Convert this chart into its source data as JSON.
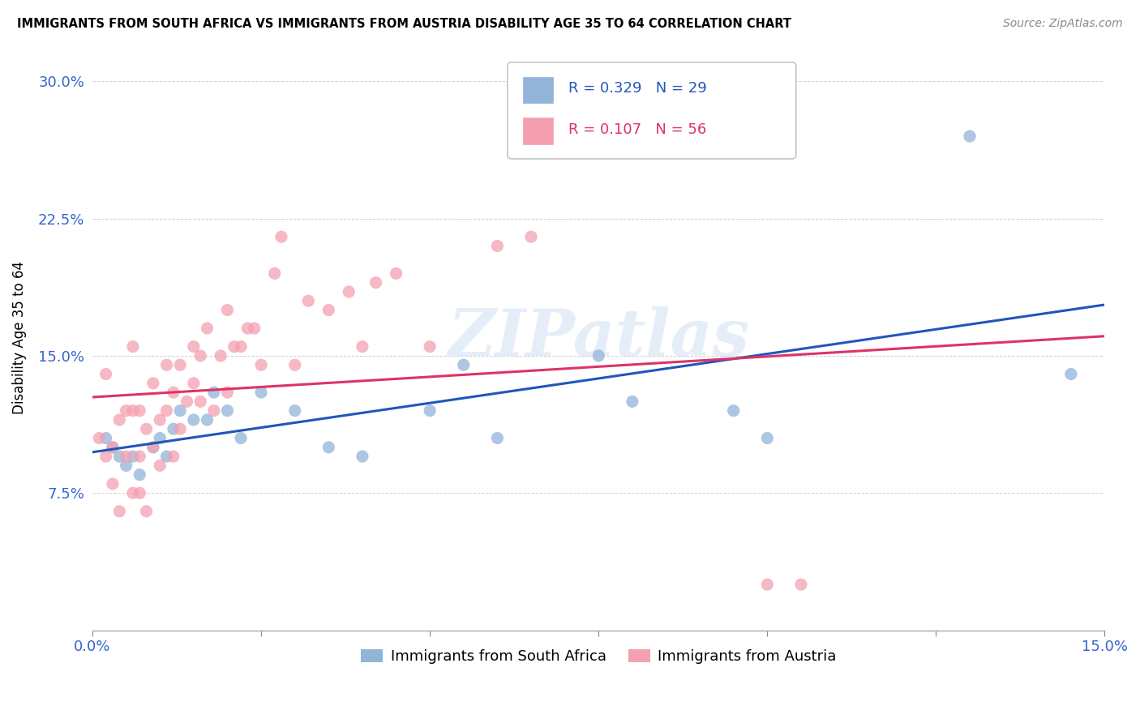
{
  "title": "IMMIGRANTS FROM SOUTH AFRICA VS IMMIGRANTS FROM AUSTRIA DISABILITY AGE 35 TO 64 CORRELATION CHART",
  "source": "Source: ZipAtlas.com",
  "ylabel": "Disability Age 35 to 64",
  "xlim": [
    0.0,
    0.15
  ],
  "ylim": [
    0.0,
    0.32
  ],
  "xticks": [
    0.0,
    0.025,
    0.05,
    0.075,
    0.1,
    0.125,
    0.15
  ],
  "xticklabels": [
    "0.0%",
    "",
    "",
    "",
    "",
    "",
    "15.0%"
  ],
  "yticks": [
    0.0,
    0.075,
    0.15,
    0.225,
    0.3
  ],
  "yticklabels": [
    "",
    "7.5%",
    "15.0%",
    "22.5%",
    "30.0%"
  ],
  "blue_color": "#92b4d7",
  "pink_color": "#f4a0b0",
  "blue_line_color": "#2255bb",
  "pink_line_color": "#dd3366",
  "r_blue": 0.329,
  "n_blue": 29,
  "r_pink": 0.107,
  "n_pink": 56,
  "legend_label_blue": "Immigrants from South Africa",
  "legend_label_pink": "Immigrants from Austria",
  "watermark": "ZIPatlas",
  "south_africa_x": [
    0.002,
    0.003,
    0.004,
    0.005,
    0.006,
    0.007,
    0.009,
    0.01,
    0.011,
    0.012,
    0.013,
    0.015,
    0.017,
    0.018,
    0.02,
    0.022,
    0.025,
    0.03,
    0.035,
    0.04,
    0.05,
    0.055,
    0.06,
    0.075,
    0.08,
    0.095,
    0.1,
    0.13,
    0.145
  ],
  "south_africa_y": [
    0.105,
    0.1,
    0.095,
    0.09,
    0.095,
    0.085,
    0.1,
    0.105,
    0.095,
    0.11,
    0.12,
    0.115,
    0.115,
    0.13,
    0.12,
    0.105,
    0.13,
    0.12,
    0.1,
    0.095,
    0.12,
    0.145,
    0.105,
    0.15,
    0.125,
    0.12,
    0.105,
    0.27,
    0.14
  ],
  "austria_x": [
    0.001,
    0.002,
    0.002,
    0.003,
    0.003,
    0.004,
    0.004,
    0.005,
    0.005,
    0.006,
    0.006,
    0.006,
    0.007,
    0.007,
    0.007,
    0.008,
    0.008,
    0.009,
    0.009,
    0.01,
    0.01,
    0.011,
    0.011,
    0.012,
    0.012,
    0.013,
    0.013,
    0.014,
    0.015,
    0.015,
    0.016,
    0.016,
    0.017,
    0.018,
    0.019,
    0.02,
    0.02,
    0.021,
    0.022,
    0.023,
    0.024,
    0.025,
    0.027,
    0.028,
    0.03,
    0.032,
    0.035,
    0.038,
    0.04,
    0.042,
    0.045,
    0.05,
    0.06,
    0.065,
    0.1,
    0.105
  ],
  "austria_y": [
    0.105,
    0.14,
    0.095,
    0.08,
    0.1,
    0.065,
    0.115,
    0.095,
    0.12,
    0.075,
    0.12,
    0.155,
    0.075,
    0.095,
    0.12,
    0.065,
    0.11,
    0.1,
    0.135,
    0.09,
    0.115,
    0.12,
    0.145,
    0.095,
    0.13,
    0.11,
    0.145,
    0.125,
    0.135,
    0.155,
    0.15,
    0.125,
    0.165,
    0.12,
    0.15,
    0.13,
    0.175,
    0.155,
    0.155,
    0.165,
    0.165,
    0.145,
    0.195,
    0.215,
    0.145,
    0.18,
    0.175,
    0.185,
    0.155,
    0.19,
    0.195,
    0.155,
    0.21,
    0.215,
    0.025,
    0.025
  ]
}
